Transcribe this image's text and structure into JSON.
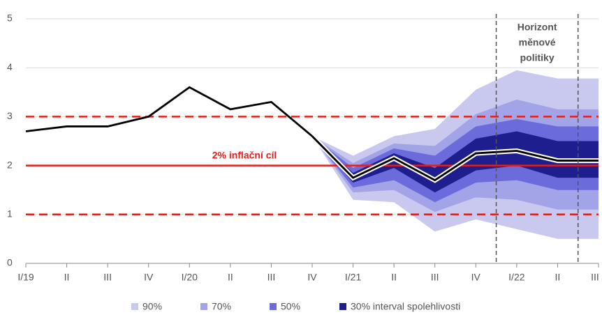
{
  "chart_data": {
    "type": "fan",
    "categories": [
      "I/19",
      "II",
      "III",
      "IV",
      "I/20",
      "II",
      "III",
      "IV",
      "I/21",
      "II",
      "III",
      "IV",
      "I/22",
      "II",
      "III"
    ],
    "ylim": [
      0,
      5
    ],
    "yticks": [
      0,
      1,
      2,
      3,
      4,
      5
    ],
    "grid": true,
    "series": [
      {
        "name": "90%",
        "color": "#c9c9f0",
        "lower": [
          null,
          null,
          null,
          null,
          null,
          null,
          null,
          2.6,
          1.3,
          1.25,
          0.65,
          0.9,
          0.7,
          0.5,
          0.5
        ],
        "upper": [
          null,
          null,
          null,
          null,
          null,
          null,
          null,
          2.6,
          2.2,
          2.6,
          2.75,
          3.55,
          3.95,
          3.78,
          3.78
        ]
      },
      {
        "name": "70%",
        "color": "#a3a3e8",
        "lower": [
          null,
          null,
          null,
          null,
          null,
          null,
          null,
          2.6,
          1.45,
          1.5,
          1.05,
          1.35,
          1.3,
          1.1,
          1.1
        ],
        "upper": [
          null,
          null,
          null,
          null,
          null,
          null,
          null,
          2.6,
          2.05,
          2.45,
          2.4,
          3.05,
          3.35,
          3.15,
          3.15
        ]
      },
      {
        "name": "50%",
        "color": "#6b6bdb",
        "lower": [
          null,
          null,
          null,
          null,
          null,
          null,
          null,
          2.6,
          1.55,
          1.7,
          1.25,
          1.65,
          1.7,
          1.5,
          1.5
        ],
        "upper": [
          null,
          null,
          null,
          null,
          null,
          null,
          null,
          2.6,
          1.95,
          2.35,
          2.2,
          2.8,
          2.95,
          2.8,
          2.8
        ]
      },
      {
        "name": "30% interval spolehlivosti",
        "color": "#1e1e8e",
        "lower": [
          null,
          null,
          null,
          null,
          null,
          null,
          null,
          2.6,
          1.65,
          1.95,
          1.45,
          1.9,
          2.0,
          1.75,
          1.75
        ],
        "upper": [
          null,
          null,
          null,
          null,
          null,
          null,
          null,
          2.6,
          1.85,
          2.25,
          1.95,
          2.55,
          2.7,
          2.5,
          2.5
        ]
      }
    ],
    "lines": [
      {
        "color": "#000000",
        "values": [
          2.7,
          2.8,
          2.8,
          3.0,
          3.6,
          3.15,
          3.3,
          2.6,
          null,
          null,
          null,
          null,
          null,
          null,
          null
        ]
      },
      {
        "color": "#000000",
        "outline": "#ffffff",
        "values": [
          null,
          null,
          null,
          null,
          null,
          null,
          null,
          2.6,
          1.75,
          2.15,
          1.7,
          2.25,
          2.3,
          2.1,
          2.1
        ]
      }
    ],
    "reference_lines": [
      {
        "value": 2,
        "style": "solid",
        "color": "#e0201c",
        "label": "2% inflační cíl"
      },
      {
        "value": 3,
        "style": "dashed",
        "color": "#e0201c"
      },
      {
        "value": 1,
        "style": "dashed",
        "color": "#e0201c"
      }
    ],
    "horizon": {
      "label": [
        "Horizont",
        "měnové",
        "politiky"
      ],
      "x": [
        11.5,
        13.5
      ]
    }
  }
}
